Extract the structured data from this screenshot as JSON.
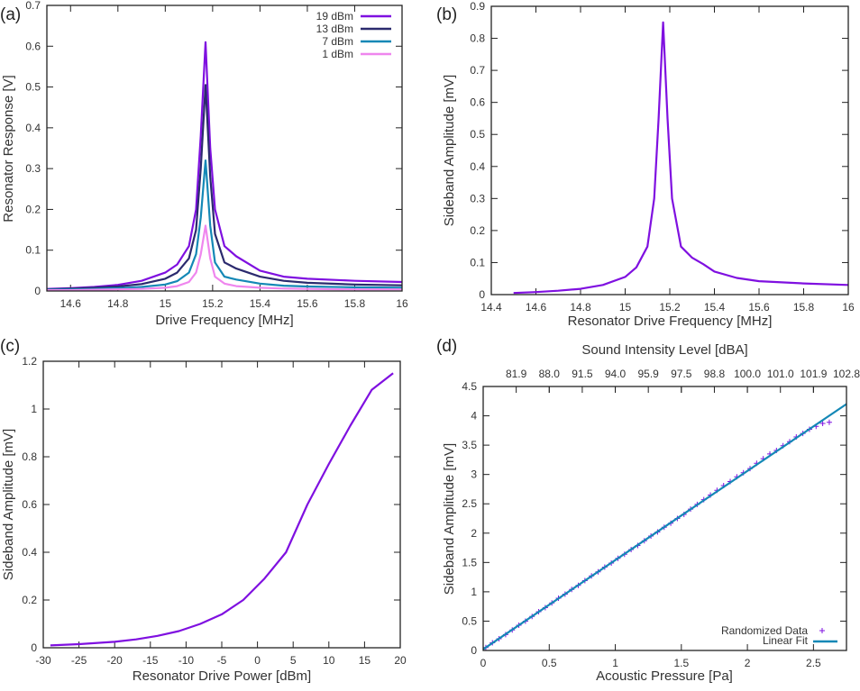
{
  "colors": {
    "p19": "#7f10e0",
    "p13": "#2b2a6e",
    "p7": "#1488b6",
    "p1": "#ef86ee",
    "fit": "#1488b6",
    "axis": "#222222"
  },
  "chart_data": [
    {
      "panel": "(a)",
      "type": "line",
      "xlabel": "Drive Frequency [MHz]",
      "ylabel": "Resonator Response [V]",
      "xlim": [
        14.5,
        16
      ],
      "ylim": [
        0,
        0.7
      ],
      "xticks": [
        14.6,
        14.8,
        15,
        15.2,
        15.4,
        15.6,
        15.8,
        16
      ],
      "xtick_labels": [
        "14.6",
        "14.8",
        "15",
        "15.2",
        "15.4",
        "15.6",
        "15.8",
        "16"
      ],
      "yticks": [
        0,
        0.1,
        0.2,
        0.3,
        0.4,
        0.5,
        0.6,
        0.7
      ],
      "ytick_labels": [
        "0",
        "0.1",
        "0.2",
        "0.3",
        "0.4",
        "0.5",
        "0.6",
        "0.7"
      ],
      "legend_position": "top-right",
      "x": [
        14.5,
        14.6,
        14.7,
        14.8,
        14.9,
        15.0,
        15.05,
        15.1,
        15.13,
        15.15,
        15.17,
        15.19,
        15.21,
        15.25,
        15.3,
        15.4,
        15.5,
        15.6,
        15.8,
        16
      ],
      "series": [
        {
          "name": "19 dBm",
          "color_key": "p19",
          "values": [
            0.005,
            0.007,
            0.01,
            0.015,
            0.025,
            0.045,
            0.065,
            0.11,
            0.2,
            0.38,
            0.61,
            0.35,
            0.2,
            0.11,
            0.085,
            0.05,
            0.035,
            0.03,
            0.025,
            0.022
          ]
        },
        {
          "name": "13 dBm",
          "color_key": "p13",
          "values": [
            0.004,
            0.006,
            0.008,
            0.011,
            0.017,
            0.03,
            0.045,
            0.08,
            0.15,
            0.3,
            0.505,
            0.28,
            0.14,
            0.07,
            0.055,
            0.035,
            0.025,
            0.02,
            0.016,
            0.014
          ]
        },
        {
          "name": "7 dBm",
          "color_key": "p7",
          "values": [
            0.003,
            0.004,
            0.005,
            0.007,
            0.01,
            0.016,
            0.024,
            0.045,
            0.09,
            0.18,
            0.32,
            0.16,
            0.07,
            0.035,
            0.028,
            0.018,
            0.013,
            0.011,
            0.009,
            0.008
          ]
        },
        {
          "name": "1 dBm",
          "color_key": "p1",
          "values": [
            0.002,
            0.002,
            0.003,
            0.004,
            0.005,
            0.008,
            0.012,
            0.022,
            0.045,
            0.09,
            0.16,
            0.08,
            0.035,
            0.018,
            0.012,
            0.008,
            0.006,
            0.005,
            0.004,
            0.004
          ]
        }
      ]
    },
    {
      "panel": "(b)",
      "type": "line",
      "xlabel": "Resonator Drive Frequency [MHz]",
      "ylabel": "Sideband Amplitude [mV]",
      "xlim": [
        14.4,
        16
      ],
      "ylim": [
        0,
        0.9
      ],
      "xticks": [
        14.4,
        14.6,
        14.8,
        15,
        15.2,
        15.4,
        15.6,
        15.8,
        16
      ],
      "xtick_labels": [
        "14.4",
        "14.6",
        "14.8",
        "15",
        "15.2",
        "15.4",
        "15.6",
        "15.8",
        "16"
      ],
      "yticks": [
        0,
        0.1,
        0.2,
        0.3,
        0.4,
        0.5,
        0.6,
        0.7,
        0.8,
        0.9
      ],
      "ytick_labels": [
        "0",
        "0.1",
        "0.2",
        "0.3",
        "0.4",
        "0.5",
        "0.6",
        "0.7",
        "0.8",
        "0.9"
      ],
      "x": [
        14.5,
        14.6,
        14.7,
        14.8,
        14.9,
        15.0,
        15.05,
        15.1,
        15.13,
        15.15,
        15.17,
        15.19,
        15.21,
        15.25,
        15.3,
        15.35,
        15.4,
        15.5,
        15.6,
        15.8,
        16
      ],
      "series": [
        {
          "color_key": "p19",
          "values": [
            0.005,
            0.008,
            0.012,
            0.018,
            0.03,
            0.055,
            0.085,
            0.15,
            0.3,
            0.55,
            0.85,
            0.55,
            0.3,
            0.15,
            0.115,
            0.095,
            0.072,
            0.052,
            0.042,
            0.035,
            0.03
          ]
        }
      ]
    },
    {
      "panel": "(c)",
      "type": "line",
      "xlabel": "Resonator Drive Power [dBm]",
      "ylabel": "Sideband Amplitude [mV]",
      "xlim": [
        -30,
        20
      ],
      "ylim": [
        0,
        1.2
      ],
      "xticks": [
        -30,
        -25,
        -20,
        -15,
        -10,
        -5,
        0,
        5,
        10,
        15,
        20
      ],
      "xtick_labels": [
        "-30",
        "-25",
        "-20",
        "-15",
        "-10",
        "-5",
        "0",
        "5",
        "10",
        "15",
        "20"
      ],
      "yticks": [
        0,
        0.2,
        0.4,
        0.6,
        0.8,
        1,
        1.2
      ],
      "ytick_labels": [
        "0",
        "0.2",
        "0.4",
        "0.6",
        "0.8",
        "1",
        "1.2"
      ],
      "x": [
        -29,
        -25,
        -20,
        -17,
        -14,
        -11,
        -8,
        -5,
        -2,
        1,
        4,
        7,
        10,
        13,
        16,
        19
      ],
      "series": [
        {
          "color_key": "p19",
          "values": [
            0.01,
            0.015,
            0.025,
            0.035,
            0.05,
            0.07,
            0.1,
            0.14,
            0.2,
            0.29,
            0.4,
            0.6,
            0.77,
            0.93,
            1.08,
            1.15
          ]
        }
      ]
    },
    {
      "panel": "(d)",
      "type": "scatter",
      "xlabel": "Acoustic Pressure [Pa]",
      "ylabel": "Sideband Amplitude [mV]",
      "x2label": "Sound Intensity Level [dBA]",
      "xlim": [
        0,
        2.75
      ],
      "ylim": [
        0,
        4.5
      ],
      "xticks": [
        0,
        0.5,
        1,
        1.5,
        2,
        2.5
      ],
      "xtick_labels": [
        "0",
        "0.5",
        "1",
        "1.5",
        "2",
        "2.5"
      ],
      "yticks": [
        0,
        0.5,
        1,
        1.5,
        2,
        2.5,
        3,
        3.5,
        4,
        4.5
      ],
      "ytick_labels": [
        "0",
        "0.5",
        "1",
        "1.5",
        "2",
        "2.5",
        "3",
        "3.5",
        "4",
        "4.5"
      ],
      "x2ticks": [
        0.25,
        0.5,
        0.75,
        1,
        1.25,
        1.5,
        1.75,
        2,
        2.25,
        2.5,
        2.75
      ],
      "x2tick_labels": [
        "81.9",
        "88.0",
        "91.5",
        "94.0",
        "95.9",
        "97.5",
        "98.8",
        "100.0",
        "101.0",
        "101.9",
        "102.8"
      ],
      "legend_position": "bottom-right",
      "series": [
        {
          "name": "Randomized Data",
          "color_key": "p19",
          "marker": "plus",
          "x": [
            0.02,
            0.07,
            0.12,
            0.17,
            0.22,
            0.27,
            0.32,
            0.37,
            0.42,
            0.47,
            0.52,
            0.57,
            0.62,
            0.67,
            0.72,
            0.77,
            0.82,
            0.87,
            0.92,
            0.97,
            1.02,
            1.07,
            1.12,
            1.17,
            1.22,
            1.27,
            1.32,
            1.37,
            1.42,
            1.47,
            1.52,
            1.57,
            1.62,
            1.67,
            1.72,
            1.77,
            1.82,
            1.87,
            1.92,
            1.97,
            2.02,
            2.07,
            2.12,
            2.17,
            2.22,
            2.27,
            2.32,
            2.37,
            2.42,
            2.47,
            2.52,
            2.57,
            2.62
          ],
          "y": [
            0.05,
            0.13,
            0.2,
            0.27,
            0.35,
            0.43,
            0.5,
            0.58,
            0.66,
            0.73,
            0.81,
            0.89,
            0.96,
            1.04,
            1.11,
            1.19,
            1.27,
            1.34,
            1.42,
            1.49,
            1.57,
            1.64,
            1.72,
            1.79,
            1.87,
            1.95,
            2.02,
            2.1,
            2.17,
            2.25,
            2.32,
            2.41,
            2.49,
            2.57,
            2.65,
            2.73,
            2.81,
            2.88,
            2.96,
            3.03,
            3.1,
            3.19,
            3.27,
            3.35,
            3.41,
            3.49,
            3.56,
            3.64,
            3.7,
            3.77,
            3.82,
            3.87,
            3.89
          ]
        },
        {
          "name": "Linear Fit",
          "color_key": "fit",
          "marker": "line",
          "x": [
            0,
            2.75
          ],
          "y": [
            0.02,
            4.2
          ]
        }
      ]
    }
  ]
}
